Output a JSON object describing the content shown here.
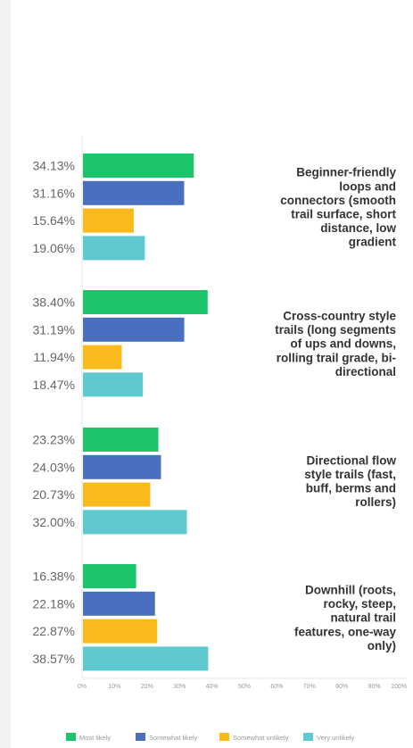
{
  "chart_data": {
    "type": "bar",
    "orientation": "horizontal",
    "categories": [
      {
        "lines": [
          "Beginner-friendly",
          "loops and",
          "connectors (smooth",
          "trail surface, short",
          "distance, low",
          "gradient"
        ]
      },
      {
        "lines": [
          "Cross-country style",
          "trails (long segments",
          "of ups and downs,",
          "rolling trail grade, bi-",
          "directional"
        ]
      },
      {
        "lines": [
          "Directional flow",
          "style trails (fast,",
          "buff, berms and",
          "rollers)"
        ]
      },
      {
        "lines": [
          "Downhill (roots,",
          "rocky, steep,",
          "natural trail",
          "features, one-way",
          "only)"
        ]
      }
    ],
    "series": [
      {
        "name": "Most likely",
        "color": "#1cc46a",
        "values": [
          34.13,
          38.4,
          23.23,
          16.38
        ],
        "labels": [
          "34.13%",
          "38.40%",
          "23.23%",
          "16.38%"
        ]
      },
      {
        "name": "Somewhat likely",
        "color": "#4a6fbf",
        "values": [
          31.16,
          31.19,
          24.03,
          22.18
        ],
        "labels": [
          "31.16%",
          "31.19%",
          "24.03%",
          "22.18%"
        ]
      },
      {
        "name": "Somewhat unlikely",
        "color": "#fbba1b",
        "values": [
          15.64,
          11.94,
          20.73,
          22.87
        ],
        "labels": [
          "15.64%",
          "11.94%",
          "20.73%",
          "22.87%"
        ]
      },
      {
        "name": "Very unlikely",
        "color": "#5ec9d0",
        "values": [
          19.06,
          18.47,
          32.0,
          38.57
        ],
        "labels": [
          "19.06%",
          "18.47%",
          "32.00%",
          "38.57%"
        ]
      }
    ],
    "xlim": [
      0,
      100
    ],
    "xticks": [
      "0%",
      "10%",
      "20%",
      "30%",
      "40%",
      "50%",
      "60%",
      "70%",
      "80%",
      "90%",
      "100%"
    ],
    "legend_position": "bottom"
  }
}
